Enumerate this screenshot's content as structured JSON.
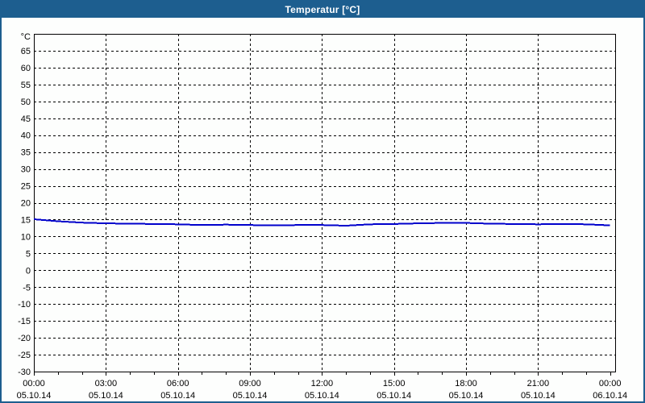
{
  "window": {
    "title": "Temperatur [°C]",
    "background_color": "#FDFEFD",
    "border_color": "#1D5E8F",
    "titlebar_color": "#1D5E8F",
    "title_text_color": "#FFFFFF"
  },
  "chart_data": {
    "type": "line",
    "title": "Temperatur [°C]",
    "ylabel": "°C",
    "ylim": [
      -30,
      70
    ],
    "yticks": [
      65,
      60,
      55,
      50,
      45,
      40,
      35,
      30,
      25,
      20,
      15,
      10,
      5,
      0,
      -5,
      -10,
      -15,
      -20,
      -25,
      -30
    ],
    "grid": true,
    "grid_color": "#000000",
    "line_color": "#0000CC",
    "xlim_hours": [
      0,
      24.2
    ],
    "x_minor_tick_every_hours": 1,
    "x_major_ticks": [
      {
        "hour": 0,
        "time": "00:00",
        "date": "05.10.14",
        "gridline": false
      },
      {
        "hour": 3,
        "time": "03:00",
        "date": "05.10.14",
        "gridline": true
      },
      {
        "hour": 6,
        "time": "06:00",
        "date": "05.10.14",
        "gridline": true
      },
      {
        "hour": 9,
        "time": "09:00",
        "date": "05.10.14",
        "gridline": true
      },
      {
        "hour": 12,
        "time": "12:00",
        "date": "05.10.14",
        "gridline": true
      },
      {
        "hour": 15,
        "time": "15:00",
        "date": "05.10.14",
        "gridline": true
      },
      {
        "hour": 18,
        "time": "18:00",
        "date": "05.10.14",
        "gridline": true
      },
      {
        "hour": 21,
        "time": "21:00",
        "date": "05.10.14",
        "gridline": true
      },
      {
        "hour": 24,
        "time": "00:00",
        "date": "06.10.14",
        "gridline": false
      }
    ],
    "series": [
      {
        "name": "Temperatur",
        "x_hours": [
          0,
          1,
          2,
          3,
          4,
          5,
          6,
          7,
          8,
          9,
          10,
          11,
          12,
          13,
          14,
          15,
          16,
          17,
          18,
          19,
          20,
          21,
          22,
          23,
          24
        ],
        "values": [
          15.1,
          14.5,
          14.1,
          13.9,
          13.8,
          13.7,
          13.6,
          13.4,
          13.5,
          13.4,
          13.3,
          13.4,
          13.4,
          13.2,
          13.6,
          13.7,
          13.9,
          14.0,
          14.0,
          13.8,
          13.7,
          13.6,
          13.7,
          13.6,
          13.3
        ]
      }
    ]
  }
}
